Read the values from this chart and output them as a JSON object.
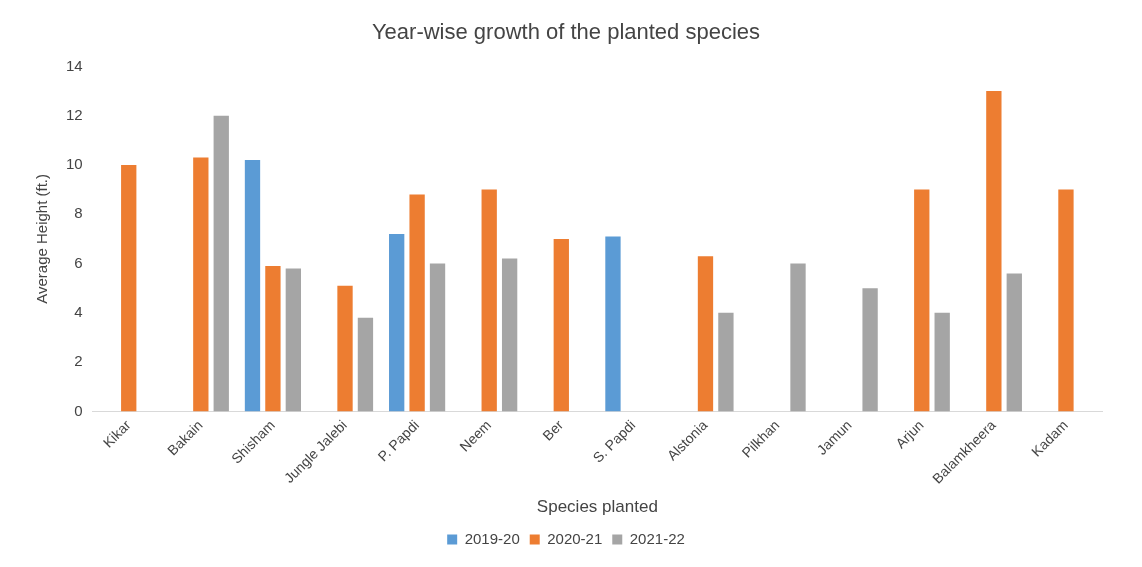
{
  "chart_data": {
    "type": "bar",
    "title": "Year-wise growth of the planted species",
    "xlabel": "Species planted",
    "ylabel": "Average Height (ft.)",
    "categories": [
      "Kikar",
      "Bakain",
      "Shisham",
      "Jungle Jalebi",
      "P. Papdi",
      "Neem",
      "Ber",
      "S. Papdi",
      "Alstonia",
      "Pilkhan",
      "Jamun",
      "Arjun",
      "Balamkheera",
      "Kadam"
    ],
    "series": [
      {
        "name": "2019-20",
        "color": "#5b9bd5",
        "values": [
          null,
          null,
          10.2,
          null,
          7.2,
          null,
          null,
          7.1,
          null,
          null,
          null,
          null,
          null,
          null
        ]
      },
      {
        "name": "2020-21",
        "color": "#ed7d31",
        "values": [
          10,
          10.3,
          5.9,
          5.1,
          8.8,
          9,
          7,
          null,
          6.3,
          null,
          null,
          9,
          13,
          9
        ]
      },
      {
        "name": "2021-22",
        "color": "#a5a5a5",
        "values": [
          null,
          12,
          5.8,
          3.8,
          6,
          6.2,
          null,
          null,
          4,
          6,
          5,
          4,
          5.6,
          null
        ]
      }
    ],
    "ylim": [
      0,
      14
    ],
    "yticks": [
      0,
      2,
      4,
      6,
      8,
      10,
      12,
      14
    ],
    "grid": false,
    "legend": "bottom"
  }
}
